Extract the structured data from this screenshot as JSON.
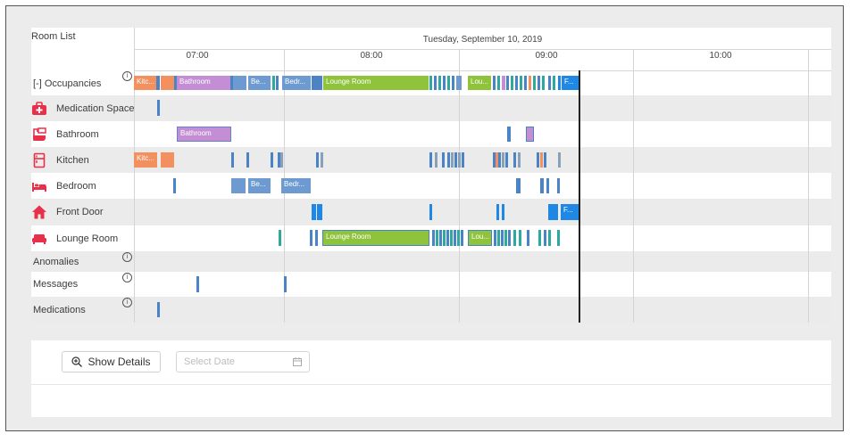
{
  "sidebar": {
    "header": "Room List",
    "rows": [
      {
        "label": "[-] Occupancies",
        "icon": "",
        "info": true
      },
      {
        "label": "Medication Space",
        "icon": "medical-kit-icon"
      },
      {
        "label": "Bathroom",
        "icon": "bath-icon"
      },
      {
        "label": "Kitchen",
        "icon": "fridge-icon"
      },
      {
        "label": "Bedroom",
        "icon": "bed-icon"
      },
      {
        "label": "Front Door",
        "icon": "home-icon"
      },
      {
        "label": "Lounge Room",
        "icon": "sofa-icon"
      },
      {
        "label": "Anomalies",
        "icon": "",
        "info": true
      },
      {
        "label": "Messages",
        "icon": "",
        "info": true
      },
      {
        "label": "Medications",
        "icon": "",
        "info": true
      }
    ],
    "icon_color": "#e8304a",
    "info_glyph": "i"
  },
  "timeline": {
    "date_label": "Tuesday, September 10, 2019",
    "hours": [
      "07:00",
      "08:00",
      "09:00",
      "10:00"
    ],
    "bar_labels": {
      "kitchen_short": "Kitc...",
      "bathroom": "Bathroom",
      "bedroom_short1": "Be...",
      "bedroom_short2": "Bedr...",
      "lounge": "Lounge Room",
      "lounge_short": "Lou...",
      "frontdoor_short": "F..."
    }
  },
  "controls": {
    "show_details_label": "Show Details",
    "date_placeholder": "Select Date"
  },
  "colors": {
    "kitchen": "#f39060",
    "bathroom": "#c48ed4",
    "bedroom": "#6d9bd1",
    "lounge": "#8fc33c",
    "front_door": "#1f88e5",
    "event": "#4a84c7",
    "accent_teal": "#2fa89e"
  }
}
